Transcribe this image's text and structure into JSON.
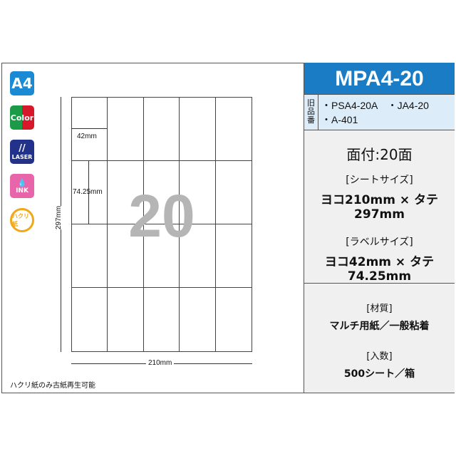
{
  "icons": [
    {
      "name": "a4-icon",
      "text": "A4",
      "color": "#1a8ad4"
    },
    {
      "name": "color-icon",
      "text": "Color"
    },
    {
      "name": "laser-icon",
      "text": "LASER",
      "color": "#22318a"
    },
    {
      "name": "ink-icon",
      "text": "INK",
      "color": "#e765a8"
    },
    {
      "name": "peelable-icon",
      "text": "ハクリ紙",
      "color": "#f0a818"
    }
  ],
  "diagram": {
    "label_count": "20",
    "width_label": "42mm",
    "height_label": "74.25mm",
    "sheet_height": "297mm",
    "sheet_width": "210mm"
  },
  "footer_note": "ハクリ紙のみ古紙再生可能",
  "product": {
    "code": "MPA4-20",
    "old_label": "旧品番",
    "old_numbers": [
      "・PSA4-20A　・JA4-20",
      "・A-401"
    ],
    "faces": "面付:20面",
    "sheet_size_title": "[シートサイズ]",
    "sheet_size": "ヨコ210mm × タテ297mm",
    "label_size_title": "[ラベルサイズ]",
    "label_size": "ヨコ42mm × タテ74.25mm",
    "material_title": "[材質]",
    "material": "マルチ用紙／一般粘着",
    "quantity_title": "[入数]",
    "quantity": "500シート／箱"
  }
}
